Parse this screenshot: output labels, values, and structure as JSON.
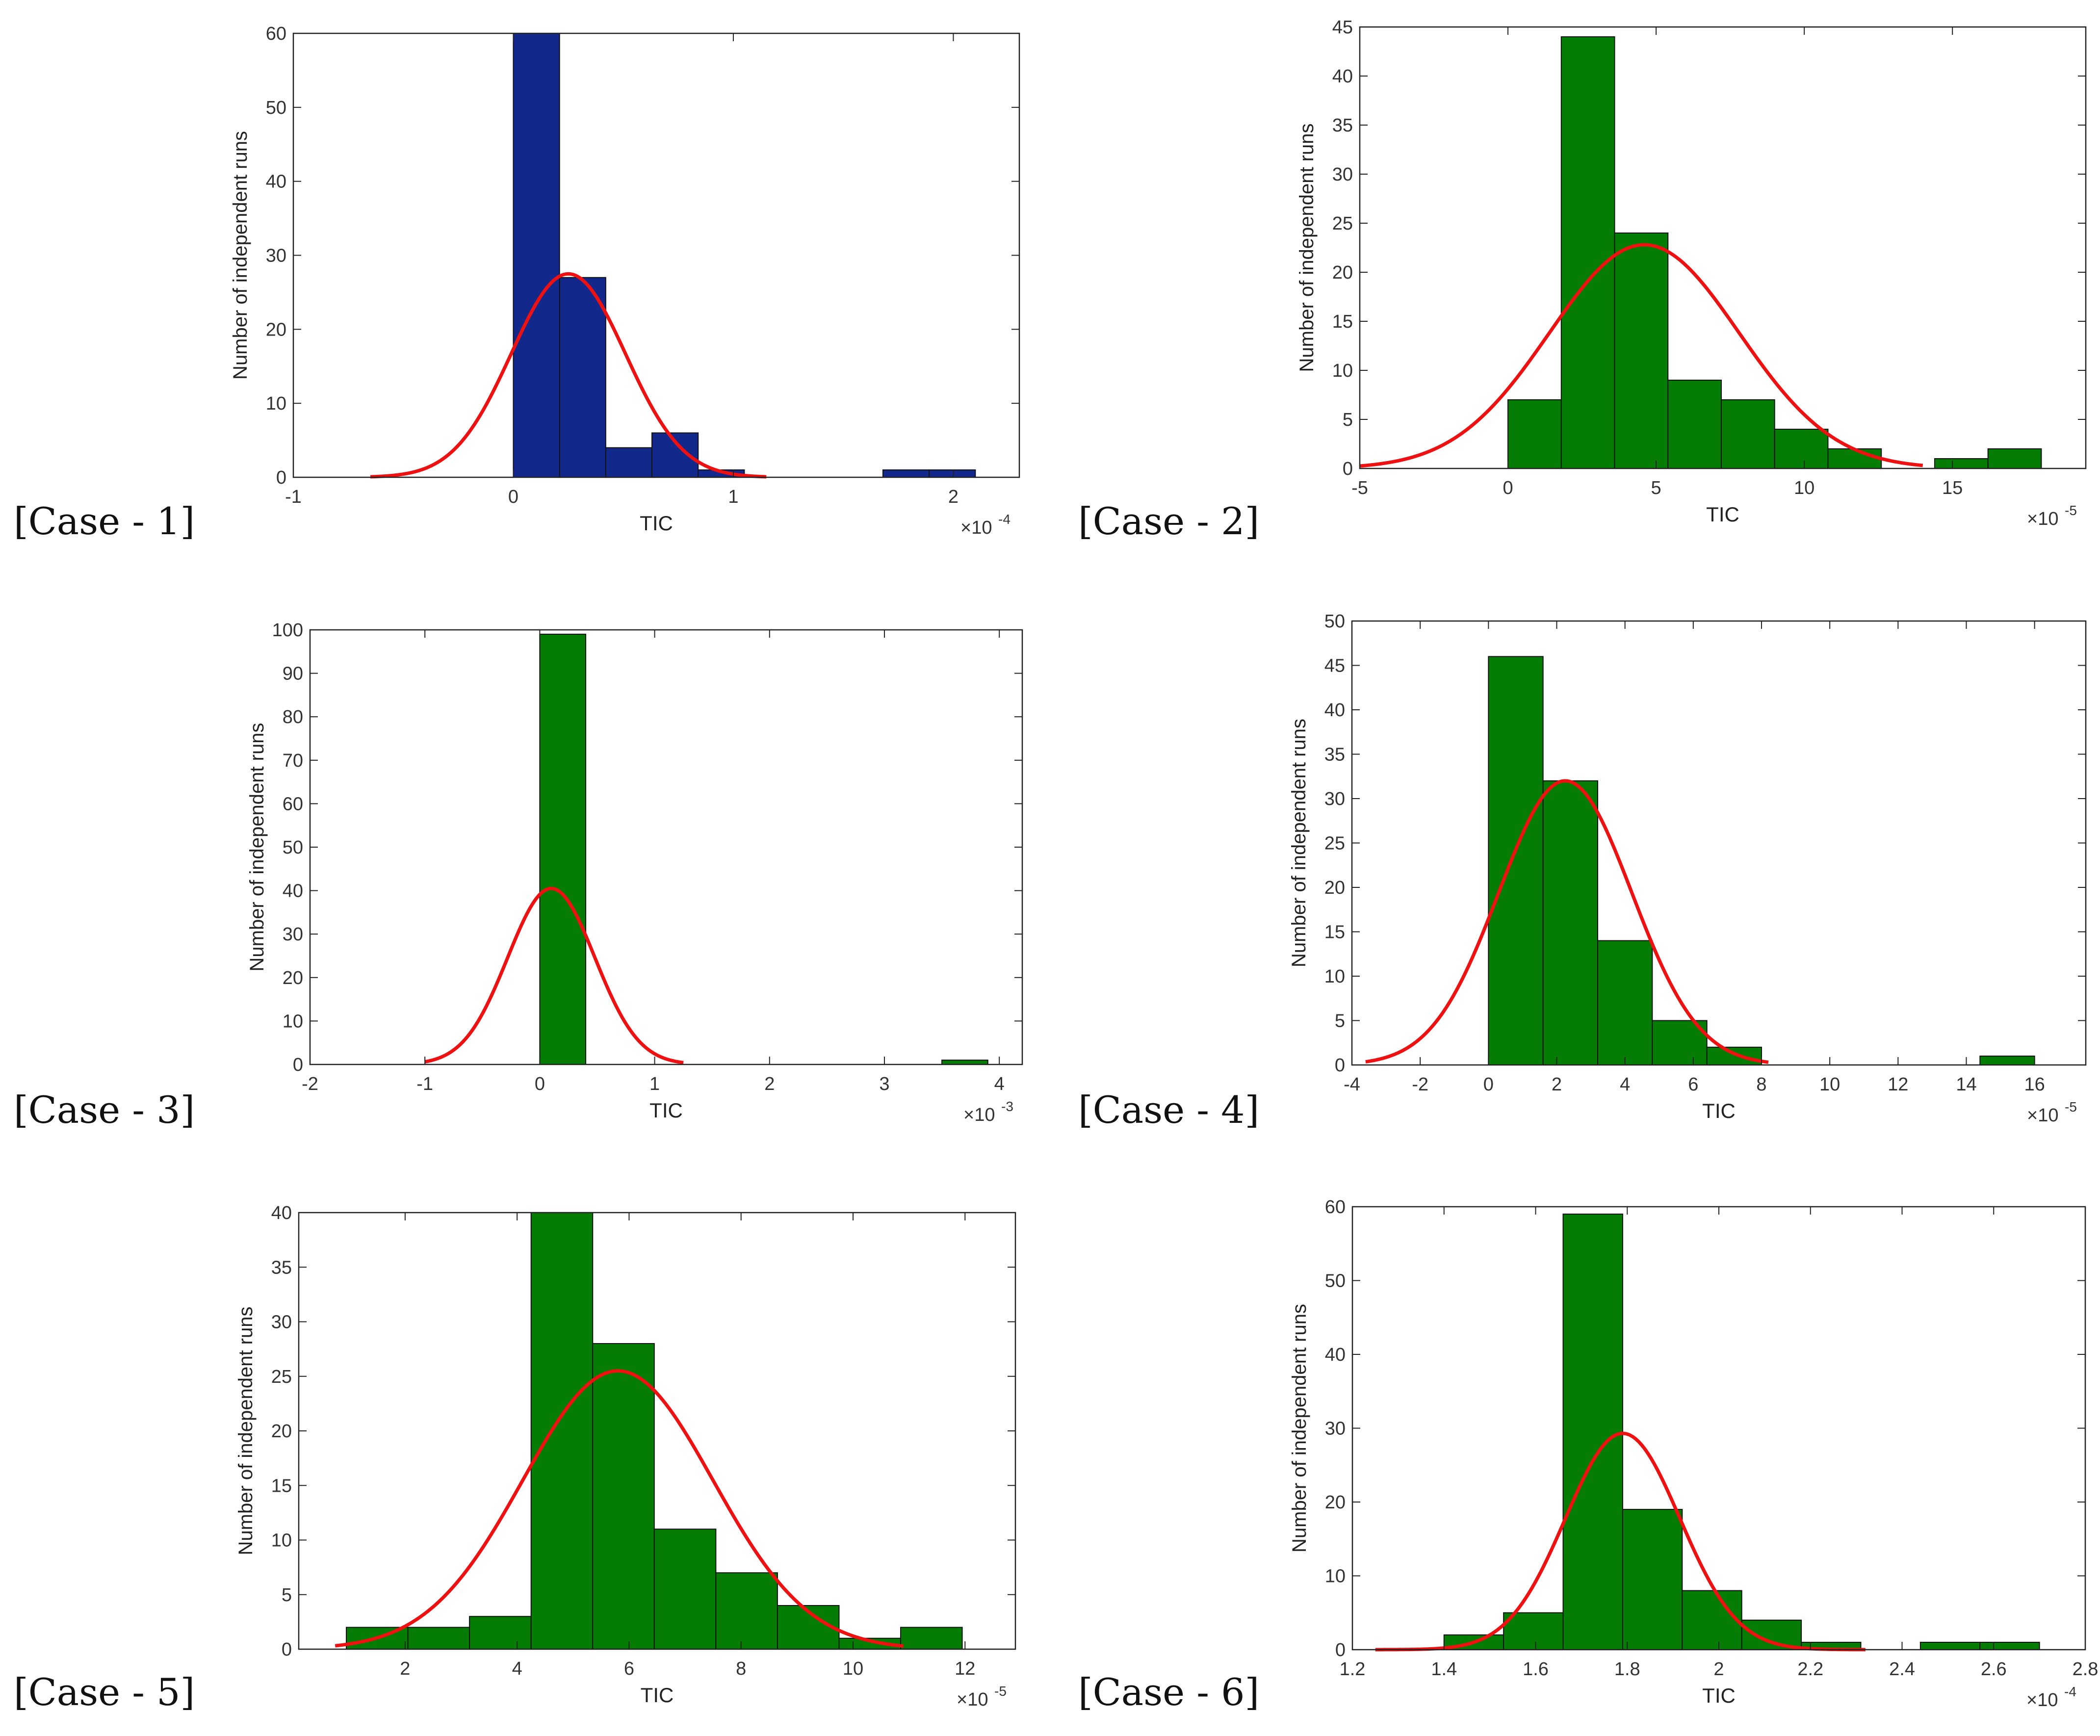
{
  "colors": {
    "blue_bar": "#12288a",
    "green_bar": "#057d05",
    "curve": "#ee1111",
    "axis": "#222222"
  },
  "chart_data": [
    {
      "type": "bar",
      "case_label": "[Case - 1]",
      "xlabel": "TIC",
      "ylabel": "Number of independent runs",
      "exponent_label": "×10",
      "exponent": "-4",
      "xlim": [
        -1,
        2.3
      ],
      "ylim": [
        0,
        60
      ],
      "xticks": [
        -1,
        0,
        1,
        2
      ],
      "yticks": [
        0,
        10,
        20,
        30,
        40,
        50,
        60
      ],
      "bar_color": "#12288a",
      "bins": [
        {
          "x0": 0.0,
          "x1": 0.21,
          "count": 60
        },
        {
          "x0": 0.21,
          "x1": 0.42,
          "count": 27
        },
        {
          "x0": 0.42,
          "x1": 0.63,
          "count": 4
        },
        {
          "x0": 0.63,
          "x1": 0.84,
          "count": 6
        },
        {
          "x0": 0.84,
          "x1": 1.05,
          "count": 1
        },
        {
          "x0": 1.68,
          "x1": 1.89,
          "count": 1
        },
        {
          "x0": 1.89,
          "x1": 2.1,
          "count": 1
        }
      ],
      "fit": {
        "mean": 0.25,
        "sd": 0.26,
        "peak": 27.5,
        "xmin": -0.65,
        "xmax": 1.15
      }
    },
    {
      "type": "bar",
      "case_label": "[Case - 2]",
      "xlabel": "TIC",
      "ylabel": "Number of independent runs",
      "exponent_label": "×10",
      "exponent": "-5",
      "xlim": [
        -5,
        19.5
      ],
      "ylim": [
        0,
        45
      ],
      "xticks": [
        -5,
        0,
        5,
        10,
        15
      ],
      "yticks": [
        0,
        5,
        10,
        15,
        20,
        25,
        30,
        35,
        40,
        45
      ],
      "bar_color": "#057d05",
      "bins": [
        {
          "x0": 0.0,
          "x1": 1.8,
          "count": 7
        },
        {
          "x0": 1.8,
          "x1": 3.6,
          "count": 44
        },
        {
          "x0": 3.6,
          "x1": 5.4,
          "count": 24
        },
        {
          "x0": 5.4,
          "x1": 7.2,
          "count": 9
        },
        {
          "x0": 7.2,
          "x1": 9.0,
          "count": 7
        },
        {
          "x0": 9.0,
          "x1": 10.8,
          "count": 4
        },
        {
          "x0": 10.8,
          "x1": 12.6,
          "count": 2
        },
        {
          "x0": 14.4,
          "x1": 16.2,
          "count": 1
        },
        {
          "x0": 16.2,
          "x1": 18.0,
          "count": 2
        }
      ],
      "fit": {
        "mean": 4.6,
        "sd": 3.2,
        "peak": 22.8,
        "xmin": -5,
        "xmax": 14
      }
    },
    {
      "type": "bar",
      "case_label": "[Case - 3]",
      "xlabel": "TIC",
      "ylabel": "Number of independent runs",
      "exponent_label": "×10",
      "exponent": "-3",
      "xlim": [
        -2,
        4.2
      ],
      "ylim": [
        0,
        100
      ],
      "xticks": [
        -2,
        -1,
        0,
        1,
        2,
        3,
        4
      ],
      "yticks": [
        0,
        10,
        20,
        30,
        40,
        50,
        60,
        70,
        80,
        90,
        100
      ],
      "bar_color": "#057d05",
      "bins": [
        {
          "x0": 0.0,
          "x1": 0.4,
          "count": 99
        },
        {
          "x0": 3.5,
          "x1": 3.9,
          "count": 1
        }
      ],
      "fit": {
        "mean": 0.1,
        "sd": 0.38,
        "peak": 40.5,
        "xmin": -1.0,
        "xmax": 1.25
      }
    },
    {
      "type": "bar",
      "case_label": "[Case - 4]",
      "xlabel": "TIC",
      "ylabel": "Number of independent runs",
      "exponent_label": "×10",
      "exponent": "-5",
      "xlim": [
        -4,
        17.5
      ],
      "ylim": [
        0,
        50
      ],
      "xticks": [
        -4,
        -2,
        0,
        2,
        4,
        6,
        8,
        10,
        12,
        14,
        16
      ],
      "yticks": [
        0,
        5,
        10,
        15,
        20,
        25,
        30,
        35,
        40,
        45,
        50
      ],
      "bar_color": "#057d05",
      "bins": [
        {
          "x0": 0.0,
          "x1": 1.6,
          "count": 46
        },
        {
          "x0": 1.6,
          "x1": 3.2,
          "count": 32
        },
        {
          "x0": 3.2,
          "x1": 4.8,
          "count": 14
        },
        {
          "x0": 4.8,
          "x1": 6.4,
          "count": 5
        },
        {
          "x0": 6.4,
          "x1": 8.0,
          "count": 2
        },
        {
          "x0": 14.4,
          "x1": 16.0,
          "count": 1
        }
      ],
      "fit": {
        "mean": 2.25,
        "sd": 1.95,
        "peak": 32,
        "xmin": -3.6,
        "xmax": 8.2
      }
    },
    {
      "type": "bar",
      "case_label": "[Case - 5]",
      "xlabel": "TIC",
      "ylabel": "Number of independent runs",
      "exponent_label": "×10",
      "exponent": "-5",
      "xlim": [
        0.1,
        12.9
      ],
      "ylim": [
        0,
        40
      ],
      "xticks": [
        2,
        4,
        6,
        8,
        10,
        12
      ],
      "yticks": [
        0,
        5,
        10,
        15,
        20,
        25,
        30,
        35,
        40
      ],
      "bar_color": "#057d05",
      "bins": [
        {
          "x0": 0.95,
          "x1": 2.05,
          "count": 2
        },
        {
          "x0": 2.05,
          "x1": 3.15,
          "count": 2
        },
        {
          "x0": 3.15,
          "x1": 4.25,
          "count": 3
        },
        {
          "x0": 4.25,
          "x1": 5.35,
          "count": 40
        },
        {
          "x0": 5.35,
          "x1": 6.45,
          "count": 28
        },
        {
          "x0": 6.45,
          "x1": 7.55,
          "count": 11
        },
        {
          "x0": 7.55,
          "x1": 8.65,
          "count": 7
        },
        {
          "x0": 8.65,
          "x1": 9.75,
          "count": 4
        },
        {
          "x0": 9.75,
          "x1": 10.85,
          "count": 1
        },
        {
          "x0": 10.85,
          "x1": 11.95,
          "count": 2
        }
      ],
      "fit": {
        "mean": 5.8,
        "sd": 1.7,
        "peak": 25.5,
        "xmin": 0.75,
        "xmax": 10.9
      }
    },
    {
      "type": "bar",
      "case_label": "[Case - 6]",
      "xlabel": "TIC",
      "ylabel": "Number of independent runs",
      "exponent_label": "×10",
      "exponent": "-4",
      "xlim": [
        1.2,
        2.8
      ],
      "ylim": [
        0,
        60
      ],
      "xticks": [
        1.2,
        1.4,
        1.6,
        1.8,
        2,
        2.2,
        2.4,
        2.6,
        2.8
      ],
      "yticks": [
        0,
        10,
        20,
        30,
        40,
        50,
        60
      ],
      "bar_color": "#057d05",
      "bins": [
        {
          "x0": 1.4,
          "x1": 1.53,
          "count": 2
        },
        {
          "x0": 1.53,
          "x1": 1.66,
          "count": 5
        },
        {
          "x0": 1.66,
          "x1": 1.79,
          "count": 59
        },
        {
          "x0": 1.79,
          "x1": 1.92,
          "count": 19
        },
        {
          "x0": 1.92,
          "x1": 2.05,
          "count": 8
        },
        {
          "x0": 2.05,
          "x1": 2.18,
          "count": 4
        },
        {
          "x0": 2.18,
          "x1": 2.31,
          "count": 1
        },
        {
          "x0": 2.44,
          "x1": 2.57,
          "count": 1
        },
        {
          "x0": 2.57,
          "x1": 2.7,
          "count": 1
        }
      ],
      "fit": {
        "mean": 1.79,
        "sd": 0.125,
        "peak": 29.3,
        "xmin": 1.25,
        "xmax": 2.32
      }
    }
  ]
}
